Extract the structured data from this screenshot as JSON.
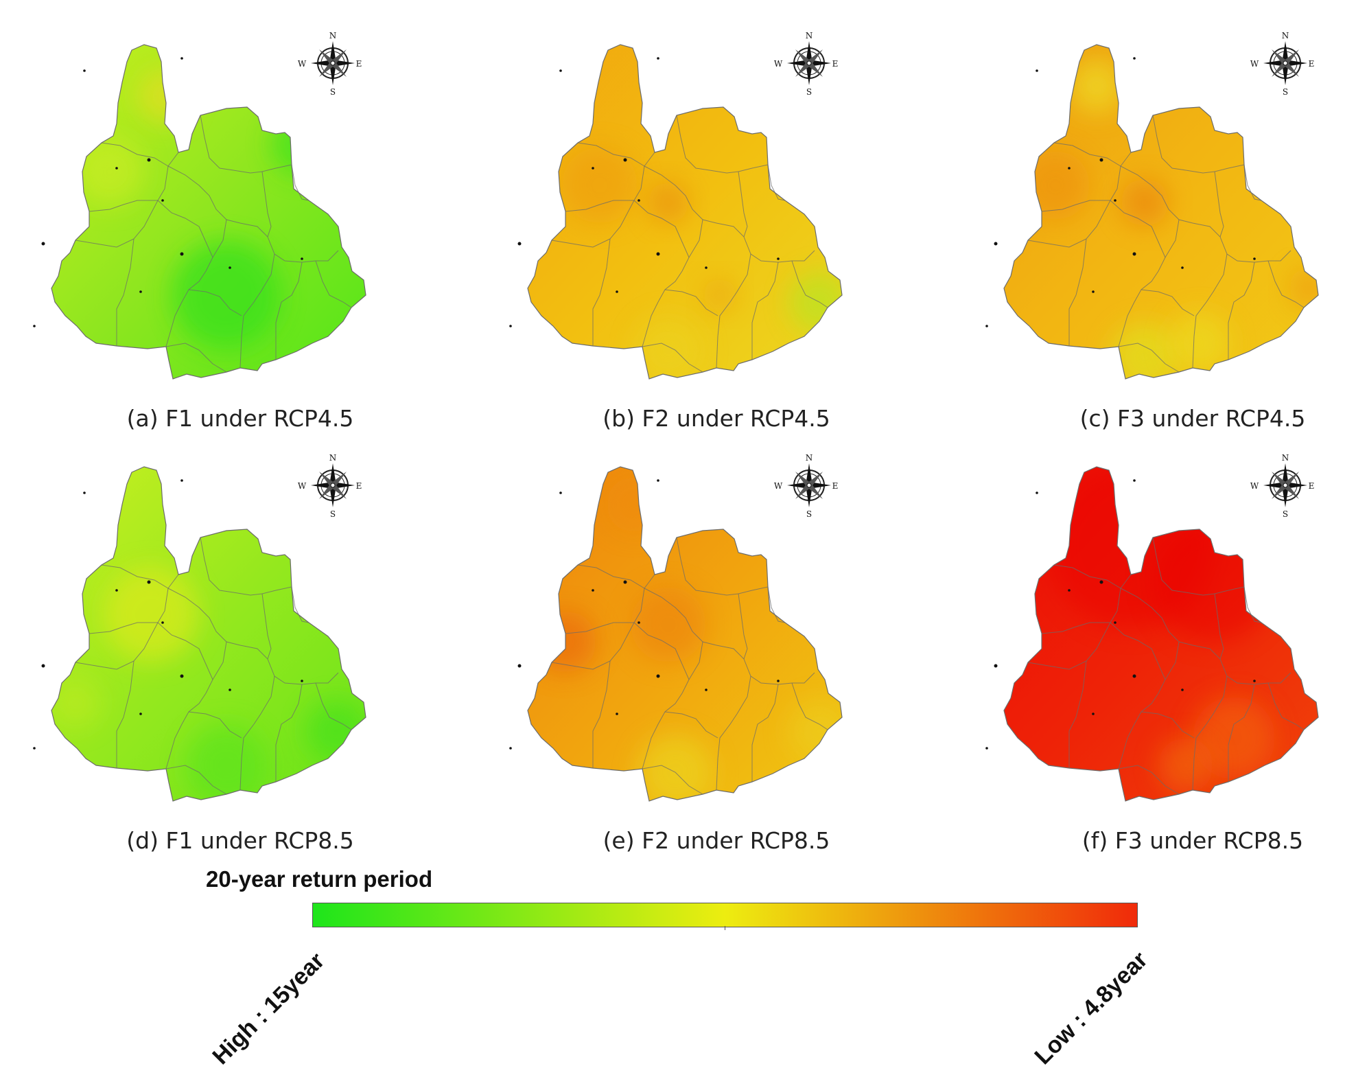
{
  "panels": [
    {
      "id": "a",
      "caption": "(a) F1 under RCP4.5",
      "dominant_color": "#9be81c"
    },
    {
      "id": "b",
      "caption": "(b) F2 under RCP4.5",
      "dominant_color": "#f4b80a"
    },
    {
      "id": "c",
      "caption": "(c) F3 under RCP4.5",
      "dominant_color": "#f3b20e"
    },
    {
      "id": "d",
      "caption": "(d) F1 under RCP8.5",
      "dominant_color": "#97e81d"
    },
    {
      "id": "e",
      "caption": "(e) F2 under RCP8.5",
      "dominant_color": "#f29e0b"
    },
    {
      "id": "f",
      "caption": "(f) F3 under RCP8.5",
      "dominant_color": "#ec1a07"
    }
  ],
  "compass": {
    "n": "N",
    "s": "S",
    "e": "E",
    "w": "W"
  },
  "legend": {
    "title": "20-year return period",
    "high_label": "High : 15year",
    "low_label": "Low : 4.8year",
    "colors": [
      "#1ee51b",
      "#eded10",
      "#f02a0a"
    ]
  }
}
